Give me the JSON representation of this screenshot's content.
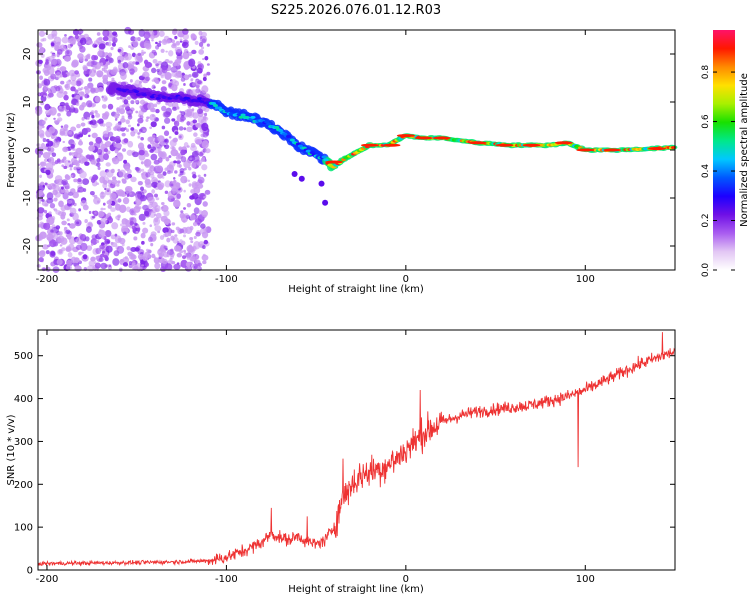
{
  "title": "S225.2026.076.01.12.R03",
  "chart_data": [
    {
      "type": "heatmap",
      "xlabel": "Height of straight line (km)",
      "ylabel": "Frequency (Hz)",
      "xlim": [
        -205,
        150
      ],
      "ylim": [
        -25,
        25
      ],
      "xticks": [
        -200,
        -100,
        0,
        100
      ],
      "yticks": [
        -20,
        -10,
        0,
        10,
        20
      ],
      "colorbar": {
        "label": "Normalized spectral amplitude",
        "range": [
          0,
          0.97
        ],
        "ticks": [
          "0.0",
          "0.2",
          "0.4",
          "0.6",
          "0.8"
        ],
        "tick_values": [
          0.0,
          0.2,
          0.4,
          0.6,
          0.8
        ],
        "colors": [
          "#ffffff",
          "#e2c6f4",
          "#a95cf0",
          "#6f10e6",
          "#1c00ff",
          "#0058ff",
          "#00c8ff",
          "#00e88a",
          "#18e000",
          "#a8f000",
          "#ffe000",
          "#ff8a00",
          "#ff1800",
          "#ff1268"
        ]
      },
      "ridge": {
        "x": [
          -165,
          -150,
          -135,
          -120,
          -110,
          -100,
          -90,
          -80,
          -70,
          -60,
          -50,
          -45,
          -40,
          -35,
          -30,
          -20,
          -10,
          0,
          10,
          20,
          40,
          60,
          80,
          90,
          100,
          120,
          150
        ],
        "y": [
          13,
          12,
          11,
          10.5,
          10,
          8,
          7,
          6,
          4,
          1,
          -1,
          -2,
          -3.5,
          -2,
          -1,
          1,
          1,
          3,
          2.5,
          2.5,
          1.5,
          1,
          1,
          1.5,
          0,
          0,
          0.5
        ]
      },
      "noise_region_x": [
        -205,
        -110
      ]
    },
    {
      "type": "line",
      "xlabel": "Height of straight line (km)",
      "ylabel": "SNR (10 * v/v)",
      "xlim": [
        -205,
        150
      ],
      "ylim": [
        0,
        560
      ],
      "xticks": [
        -200,
        -100,
        0,
        100
      ],
      "yticks": [
        0,
        100,
        200,
        300,
        400,
        500
      ],
      "color": "#ee3333",
      "series": [
        {
          "name": "SNR",
          "x": [
            -205,
            -180,
            -160,
            -140,
            -120,
            -110,
            -100,
            -90,
            -80,
            -75,
            -70,
            -65,
            -60,
            -55,
            -50,
            -45,
            -40,
            -35,
            -30,
            -25,
            -20,
            -15,
            -10,
            -5,
            0,
            10,
            20,
            30,
            40,
            50,
            60,
            70,
            80,
            90,
            100,
            110,
            120,
            130,
            140,
            150
          ],
          "y": [
            15,
            16,
            17,
            18,
            20,
            22,
            30,
            45,
            65,
            85,
            75,
            70,
            80,
            65,
            60,
            70,
            100,
            170,
            200,
            220,
            230,
            235,
            245,
            260,
            280,
            320,
            345,
            360,
            370,
            375,
            380,
            385,
            395,
            405,
            420,
            440,
            460,
            480,
            495,
            510
          ]
        }
      ],
      "spikes": [
        {
          "x": -75,
          "y": 145
        },
        {
          "x": -55,
          "y": 125
        },
        {
          "x": -35,
          "y": 260
        },
        {
          "x": 8,
          "y": 420
        },
        {
          "x": 96,
          "y": 240
        },
        {
          "x": 143,
          "y": 555
        }
      ]
    }
  ]
}
